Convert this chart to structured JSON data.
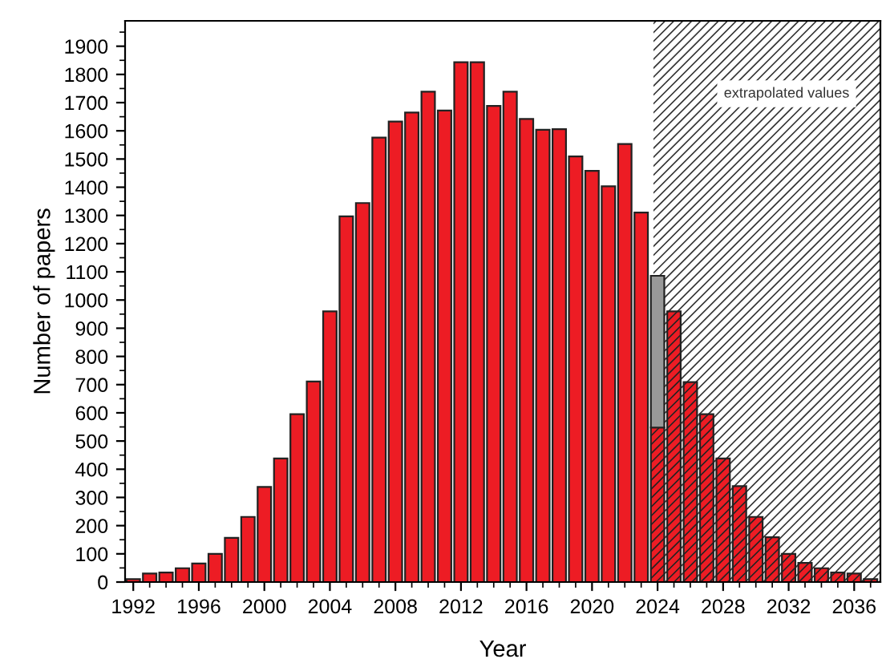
{
  "chart_data": {
    "type": "bar",
    "xlabel": "Year",
    "ylabel": "Number of papers",
    "stacked": true,
    "x": [
      1992,
      1993,
      1994,
      1995,
      1996,
      1997,
      1998,
      1999,
      2000,
      2001,
      2002,
      2003,
      2004,
      2005,
      2006,
      2007,
      2008,
      2009,
      2010,
      2011,
      2012,
      2013,
      2014,
      2015,
      2016,
      2017,
      2018,
      2019,
      2020,
      2021,
      2022,
      2023,
      2024,
      2025,
      2026,
      2027,
      2028,
      2029,
      2030,
      2031,
      2032,
      2033,
      2034,
      2035,
      2036,
      2037
    ],
    "series": [
      {
        "color": "#ed1c24",
        "values": [
          10,
          30,
          34,
          49,
          66,
          100,
          157,
          231,
          337,
          438,
          595,
          711,
          960,
          1297,
          1344,
          1576,
          1633,
          1665,
          1739,
          1672,
          1843,
          1843,
          1688,
          1739,
          1642,
          1604,
          1606,
          1509,
          1458,
          1403,
          1553,
          1310,
          548,
          960,
          709,
          595,
          438,
          340,
          231,
          159,
          100,
          68,
          49,
          34,
          30,
          10
        ]
      },
      {
        "color": "#999999",
        "values": [
          null,
          null,
          null,
          null,
          null,
          null,
          null,
          null,
          null,
          null,
          null,
          null,
          null,
          null,
          null,
          null,
          null,
          null,
          null,
          null,
          null,
          null,
          null,
          null,
          null,
          null,
          null,
          null,
          null,
          null,
          null,
          null,
          538,
          null,
          null,
          null,
          null,
          null,
          null,
          null,
          null,
          null,
          null,
          null,
          null,
          null
        ]
      }
    ],
    "xlim": [
      1991.5,
      2037.6
    ],
    "xticks": [
      1992,
      {
        "value": 1993,
        "label": null
      },
      {
        "value": 1994,
        "label": null
      },
      {
        "value": 1995,
        "label": null
      },
      1996,
      {
        "value": 1997,
        "label": null
      },
      {
        "value": 1998,
        "label": null
      },
      {
        "value": 1999,
        "label": null
      },
      2000,
      {
        "value": 2001,
        "label": null
      },
      {
        "value": 2002,
        "label": null
      },
      {
        "value": 2003,
        "label": null
      },
      2004,
      {
        "value": 2005,
        "label": null
      },
      {
        "value": 2006,
        "label": null
      },
      {
        "value": 2007,
        "label": null
      },
      2008,
      {
        "value": 2009,
        "label": null
      },
      {
        "value": 2010,
        "label": null
      },
      {
        "value": 2011,
        "label": null
      },
      2012,
      {
        "value": 2013,
        "label": null
      },
      {
        "value": 2014,
        "label": null
      },
      {
        "value": 2015,
        "label": null
      },
      2016,
      {
        "value": 2017,
        "label": null
      },
      {
        "value": 2018,
        "label": null
      },
      {
        "value": 2019,
        "label": null
      },
      2020,
      {
        "value": 2021,
        "label": null
      },
      {
        "value": 2022,
        "label": null
      },
      {
        "value": 2023,
        "label": null
      },
      2024,
      {
        "value": 2025,
        "label": null
      },
      {
        "value": 2026,
        "label": null
      },
      {
        "value": 2027,
        "label": null
      },
      2028,
      {
        "value": 2029,
        "label": null
      },
      {
        "value": 2030,
        "label": null
      },
      {
        "value": 2031,
        "label": null
      },
      2032,
      {
        "value": 2033,
        "label": null
      },
      {
        "value": 2034,
        "label": null
      },
      {
        "value": 2035,
        "label": null
      },
      2036,
      {
        "value": 2037,
        "label": null
      }
    ],
    "ylim": [
      0,
      1990
    ],
    "yticks": [
      0,
      {
        "value": 50,
        "label": null
      },
      100,
      {
        "value": 150,
        "label": null
      },
      200,
      {
        "value": 250,
        "label": null
      },
      300,
      {
        "value": 350,
        "label": null
      },
      400,
      {
        "value": 450,
        "label": null
      },
      500,
      {
        "value": 550,
        "label": null
      },
      600,
      {
        "value": 650,
        "label": null
      },
      700,
      {
        "value": 750,
        "label": null
      },
      800,
      {
        "value": 850,
        "label": null
      },
      900,
      {
        "value": 950,
        "label": null
      },
      1000,
      {
        "value": 1050,
        "label": null
      },
      1100,
      {
        "value": 1150,
        "label": null
      },
      1200,
      {
        "value": 1250,
        "label": null
      },
      1300,
      {
        "value": 1350,
        "label": null
      },
      1400,
      {
        "value": 1450,
        "label": null
      },
      1500,
      {
        "value": 1550,
        "label": null
      },
      1600,
      {
        "value": 1650,
        "label": null
      },
      1700,
      {
        "value": 1750,
        "label": null
      },
      1800,
      {
        "value": 1850,
        "label": null
      },
      1900,
      {
        "value": 1950,
        "label": null
      }
    ],
    "bands": [
      {
        "axis": "x",
        "from": 2023.75,
        "to": 2037.6,
        "label": "extrapolated values",
        "color": "#333333"
      }
    ],
    "grid": false,
    "legend": false
  }
}
